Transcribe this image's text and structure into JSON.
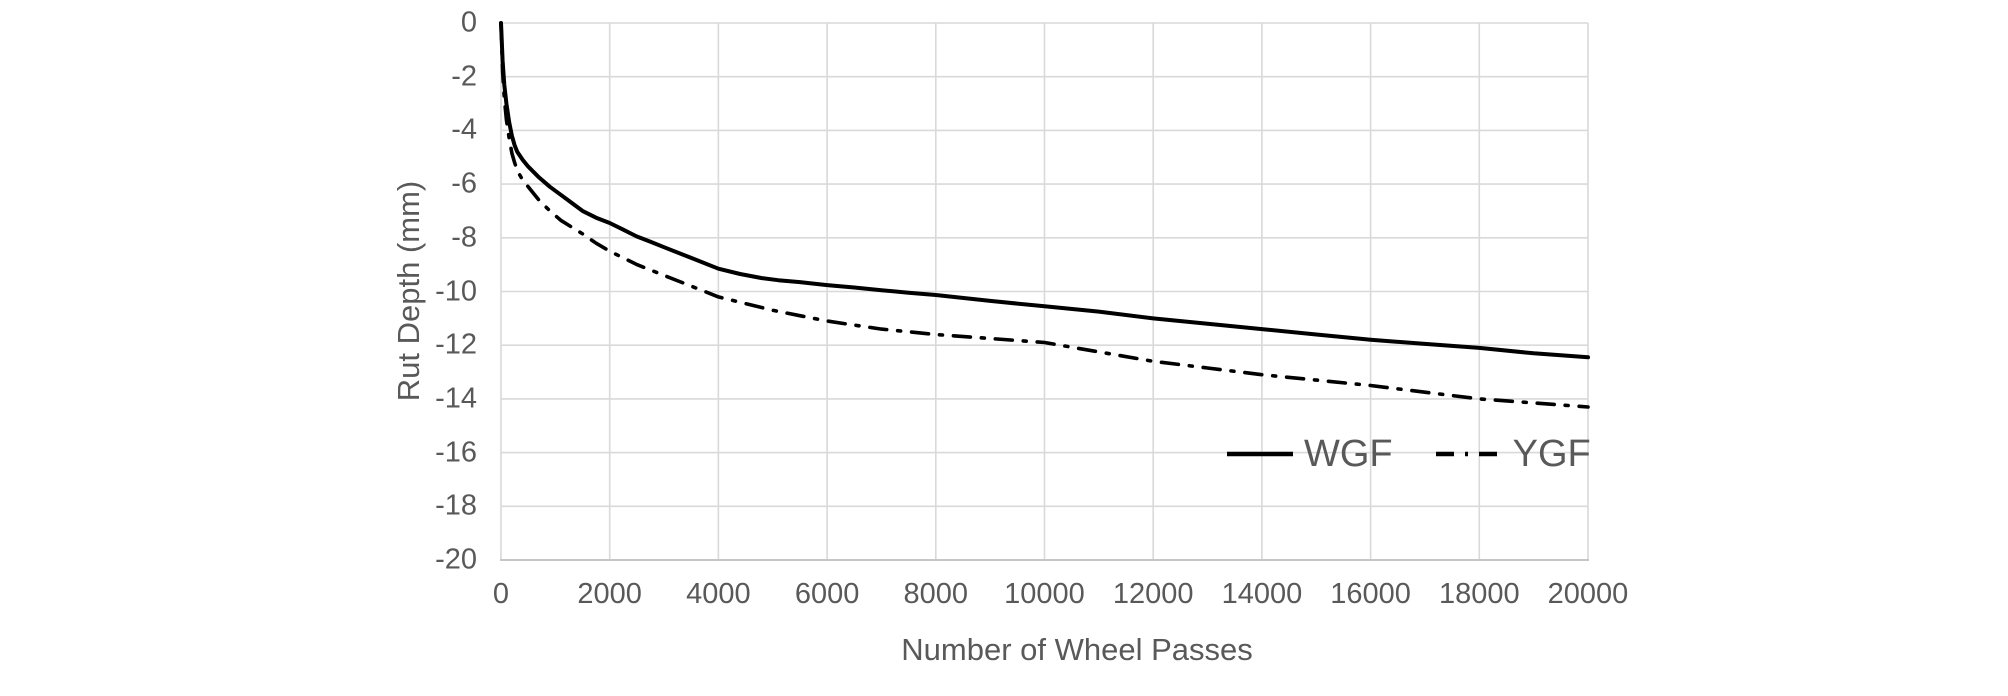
{
  "colors": {
    "background": "#ffffff",
    "gridline": "#d9d9d9",
    "axis_line": "#c6c6c6",
    "text": "#595959",
    "series": "#000000"
  },
  "chart_data": {
    "type": "line",
    "title": "",
    "xlabel": "Number of Wheel Passes",
    "ylabel": "Rut Depth (mm)",
    "xlim": [
      0,
      20000
    ],
    "ylim": [
      -20,
      0
    ],
    "grid": true,
    "legend_position": "inside-center-right",
    "x_ticks": [
      0,
      2000,
      4000,
      6000,
      8000,
      10000,
      12000,
      14000,
      16000,
      18000,
      20000
    ],
    "x_tick_labels": [
      "0",
      "2000",
      "4000",
      "6000",
      "8000",
      "10000",
      "12000",
      "14000",
      "16000",
      "18000",
      "20000"
    ],
    "y_ticks": [
      0,
      -2,
      -4,
      -6,
      -8,
      -10,
      -12,
      -14,
      -16,
      -18,
      -20
    ],
    "y_tick_labels": [
      "0",
      "-2",
      "-4",
      "-6",
      "-8",
      "-10",
      "-12",
      "-14",
      "-16",
      "-18",
      "-20"
    ],
    "series": [
      {
        "name": "WGF",
        "style": "solid",
        "color": "#000000",
        "points": [
          [
            0,
            0
          ],
          [
            30,
            -1.4
          ],
          [
            60,
            -2.3
          ],
          [
            100,
            -3.0
          ],
          [
            150,
            -3.7
          ],
          [
            200,
            -4.2
          ],
          [
            250,
            -4.55
          ],
          [
            300,
            -4.8
          ],
          [
            400,
            -5.1
          ],
          [
            500,
            -5.35
          ],
          [
            700,
            -5.75
          ],
          [
            900,
            -6.1
          ],
          [
            1100,
            -6.4
          ],
          [
            1300,
            -6.7
          ],
          [
            1500,
            -7.0
          ],
          [
            1750,
            -7.25
          ],
          [
            2000,
            -7.45
          ],
          [
            2250,
            -7.7
          ],
          [
            2500,
            -7.95
          ],
          [
            2750,
            -8.15
          ],
          [
            3000,
            -8.35
          ],
          [
            3500,
            -8.75
          ],
          [
            4000,
            -9.15
          ],
          [
            4400,
            -9.35
          ],
          [
            4800,
            -9.5
          ],
          [
            5100,
            -9.58
          ],
          [
            5500,
            -9.65
          ],
          [
            6000,
            -9.76
          ],
          [
            6500,
            -9.85
          ],
          [
            7000,
            -9.95
          ],
          [
            7500,
            -10.05
          ],
          [
            8000,
            -10.13
          ],
          [
            9000,
            -10.35
          ],
          [
            10000,
            -10.55
          ],
          [
            11000,
            -10.75
          ],
          [
            12000,
            -11.0
          ],
          [
            13000,
            -11.2
          ],
          [
            14000,
            -11.4
          ],
          [
            15000,
            -11.6
          ],
          [
            16000,
            -11.8
          ],
          [
            17000,
            -11.95
          ],
          [
            18000,
            -12.1
          ],
          [
            19000,
            -12.3
          ],
          [
            20000,
            -12.45
          ]
        ]
      },
      {
        "name": "YGF",
        "style": "dash-dot",
        "color": "#000000",
        "points": [
          [
            0,
            0
          ],
          [
            30,
            -1.8
          ],
          [
            60,
            -2.8
          ],
          [
            100,
            -3.6
          ],
          [
            150,
            -4.3
          ],
          [
            200,
            -4.85
          ],
          [
            250,
            -5.2
          ],
          [
            300,
            -5.5
          ],
          [
            400,
            -5.85
          ],
          [
            500,
            -6.1
          ],
          [
            700,
            -6.6
          ],
          [
            900,
            -7.0
          ],
          [
            1100,
            -7.35
          ],
          [
            1300,
            -7.6
          ],
          [
            1500,
            -7.85
          ],
          [
            1750,
            -8.2
          ],
          [
            2000,
            -8.5
          ],
          [
            2250,
            -8.75
          ],
          [
            2500,
            -9.0
          ],
          [
            2750,
            -9.2
          ],
          [
            3000,
            -9.4
          ],
          [
            3500,
            -9.8
          ],
          [
            4000,
            -10.2
          ],
          [
            4500,
            -10.45
          ],
          [
            5000,
            -10.7
          ],
          [
            5500,
            -10.9
          ],
          [
            6000,
            -11.1
          ],
          [
            6500,
            -11.25
          ],
          [
            7000,
            -11.4
          ],
          [
            7500,
            -11.5
          ],
          [
            8000,
            -11.6
          ],
          [
            9000,
            -11.75
          ],
          [
            10000,
            -11.9
          ],
          [
            11000,
            -12.25
          ],
          [
            12000,
            -12.6
          ],
          [
            13000,
            -12.85
          ],
          [
            14000,
            -13.1
          ],
          [
            15000,
            -13.3
          ],
          [
            16000,
            -13.5
          ],
          [
            17000,
            -13.75
          ],
          [
            18000,
            -14.0
          ],
          [
            19000,
            -14.15
          ],
          [
            20000,
            -14.3
          ]
        ]
      }
    ]
  }
}
